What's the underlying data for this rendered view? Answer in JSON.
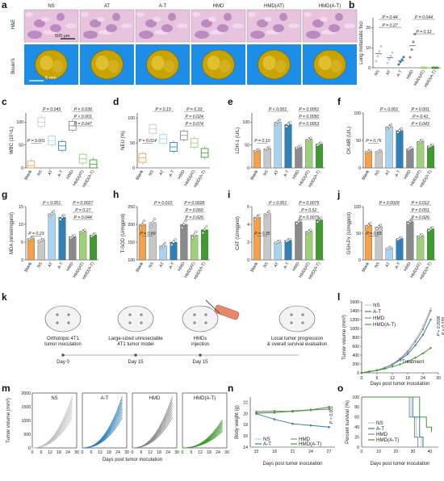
{
  "panel_labels": [
    "a",
    "b",
    "c",
    "d",
    "e",
    "f",
    "g",
    "h",
    "i",
    "j",
    "k",
    "l",
    "m",
    "n",
    "o"
  ],
  "panel_a": {
    "row_labels": [
      "H&E",
      "Bouin's"
    ],
    "groups": [
      "NS",
      "AT",
      "A-T",
      "HMD",
      "HMD(AT)",
      "HMD(A-T)"
    ],
    "scale_he": "500 μm",
    "scale_bouin": "5 mm"
  },
  "colors": {
    "Blank": "#f5a04a",
    "NS": "#c8c8c8",
    "AT": "#a8d4f0",
    "A-T": "#2f7fb8",
    "HMD": "#8a8a8a",
    "HMD(AT)": "#9ed07a",
    "HMD(A-T)": "#3f9b2f"
  },
  "panel_k": {
    "steps": [
      "Orthotopic 4T1\ntumor inoculation",
      "Large-sized unresectable\n4T1 tumor model",
      "HMDs\ninjection",
      "Local tumor progression\n& overall survival evaluation"
    ],
    "days": [
      "Day 0",
      "Day 15",
      "Day 15"
    ]
  },
  "chart_data": [
    {
      "panel": "b",
      "type": "scatter",
      "ylabel": "Lung metastatic foci",
      "categories": [
        "NS",
        "AT",
        "A-T",
        "HMD",
        "HMD(AT)",
        "HMD(A-T)"
      ],
      "means": [
        7,
        5,
        3.5,
        11,
        0,
        0
      ],
      "ylim": [
        0,
        25
      ],
      "yticks": [
        0,
        10,
        20
      ],
      "brackets": [
        {
          "from": "NS",
          "to": "A-T",
          "label": "P = 0.44"
        },
        {
          "from": "NS",
          "to": "A-T",
          "label": "P = 0.27"
        },
        {
          "from": "HMD",
          "to": "HMD(A-T)",
          "label": "P = 0.044"
        },
        {
          "from": "HMD",
          "to": "HMD(A-T)",
          "label": "P = 0.12"
        }
      ]
    },
    {
      "panel": "c",
      "type": "box",
      "ylabel": "WBC (10⁹/L)",
      "categories": [
        "Blank",
        "NS",
        "AT",
        "A-T",
        "HMD",
        "HMD(AT)",
        "HMD(A-T)"
      ],
      "medians": [
        5,
        100,
        60,
        48,
        92,
        20,
        8
      ],
      "ylim": [
        0,
        120
      ],
      "yticks": [
        0,
        50,
        100
      ],
      "brackets": [
        {
          "label": "P = 0.045"
        },
        {
          "label": "P = 0.039"
        },
        {
          "label": "P < 0.001"
        },
        {
          "label": "P = 0.047"
        },
        {
          "label": "P = 0.001"
        }
      ]
    },
    {
      "panel": "d",
      "type": "box",
      "ylabel": "NEU (%)",
      "categories": [
        "Blank",
        "NS",
        "AT",
        "A-T",
        "HMD",
        "HMD(AT)",
        "HMD(A-T)"
      ],
      "medians": [
        20,
        78,
        58,
        42,
        65,
        50,
        30
      ],
      "ylim": [
        0,
        110
      ],
      "yticks": [
        0,
        50,
        100
      ],
      "brackets": [
        {
          "label": "P = 0.15"
        },
        {
          "label": "P = 0.33"
        },
        {
          "label": "P = 0.024"
        },
        {
          "label": "P = 0.074"
        },
        {
          "label": "P = 0.014"
        }
      ]
    },
    {
      "panel": "e",
      "type": "bar",
      "ylabel": "LDH-1 (U/L)",
      "categories": [
        "Blank",
        "NS",
        "AT",
        "A-T",
        "HMD",
        "HMD(AT)",
        "HMD(A-T)"
      ],
      "values": [
        38,
        42,
        100,
        95,
        45,
        62,
        52
      ],
      "ylim": [
        0,
        120
      ],
      "yticks": [
        0,
        50,
        100
      ],
      "brackets": [
        {
          "label": "P < 0.001"
        },
        {
          "label": "P = 0.0051"
        },
        {
          "label": "P = 0.0050"
        },
        {
          "label": "P = 0.0053"
        },
        {
          "label": "P = 0.10"
        }
      ]
    },
    {
      "panel": "f",
      "type": "bar",
      "ylabel": "CK-MB (U/L)",
      "categories": [
        "Blank",
        "NS",
        "AT",
        "A-T",
        "HMD",
        "HMD(AT)",
        "HMD(A-T)"
      ],
      "values": [
        30,
        30,
        75,
        68,
        35,
        48,
        40
      ],
      "ylim": [
        0,
        100
      ],
      "yticks": [
        0,
        50,
        100
      ],
      "brackets": [
        {
          "label": "P < 0.001"
        },
        {
          "label": "P = 0.001"
        },
        {
          "label": "P = 0.41"
        },
        {
          "label": "P = 0.043"
        },
        {
          "label": "P = 0.76"
        }
      ]
    },
    {
      "panel": "g",
      "type": "bar",
      "ylabel": "MDA (nmol/mgprot)",
      "categories": [
        "Blank",
        "NS",
        "AT",
        "A-T",
        "HMD",
        "HMD(AT)",
        "HMD(A-T)"
      ],
      "values": [
        6,
        5.5,
        13,
        12,
        6.5,
        8,
        7
      ],
      "ylim": [
        0,
        15
      ],
      "yticks": [
        0,
        5,
        10,
        15
      ],
      "brackets": [
        {
          "label": "P < 0.001"
        },
        {
          "label": "P = 0.0027"
        },
        {
          "label": "P = 0.27"
        },
        {
          "label": "P = 0.044"
        },
        {
          "label": "P = 0.23"
        }
      ]
    },
    {
      "panel": "h",
      "type": "bar",
      "ylabel": "T-SOD (U/mgprot)",
      "categories": [
        "Blank",
        "NS",
        "AT",
        "A-T",
        "HMD",
        "HMD(AT)",
        "HMD(A-T)"
      ],
      "values": [
        200,
        205,
        140,
        150,
        200,
        170,
        185
      ],
      "ylim": [
        100,
        250
      ],
      "yticks": [
        100,
        150,
        200,
        250
      ],
      "brackets": [
        {
          "label": "P = 0.010"
        },
        {
          "label": "P = 0.0028"
        },
        {
          "label": "P = 0.060"
        },
        {
          "label": "P = 0.026"
        },
        {
          "label": "P = 0.89"
        }
      ]
    },
    {
      "panel": "i",
      "type": "bar",
      "ylabel": "CAT (U/mgprot)",
      "categories": [
        "Blank",
        "NS",
        "AT",
        "A-T",
        "HMD",
        "HMD(AT)",
        "HMD(A-T)"
      ],
      "values": [
        4.8,
        5.2,
        2.0,
        2.2,
        4.3,
        3.2,
        4.5
      ],
      "ylim": [
        0,
        6
      ],
      "yticks": [
        0,
        2,
        4,
        6
      ],
      "brackets": [
        {
          "label": "P < 0.001"
        },
        {
          "label": "P = 0.0075"
        },
        {
          "label": "P = 0.52"
        },
        {
          "label": "P = 0.0079"
        },
        {
          "label": "P = 0.35"
        }
      ]
    },
    {
      "panel": "j",
      "type": "bar",
      "ylabel": "GSH-Px (U/mgprot)",
      "categories": [
        "Blank",
        "NS",
        "AT",
        "A-T",
        "HMD",
        "HMD(AT)",
        "HMD(A-T)"
      ],
      "values": [
        65,
        62,
        22,
        40,
        72,
        45,
        58
      ],
      "ylim": [
        0,
        100
      ],
      "yticks": [
        0,
        50,
        100
      ],
      "brackets": [
        {
          "label": "P = 0.0029"
        },
        {
          "label": "P = 0.012"
        },
        {
          "label": "P = 0.051"
        },
        {
          "label": "P = 0.026"
        },
        {
          "label": "P = 0.83"
        }
      ]
    },
    {
      "panel": "l",
      "type": "line",
      "ylabel": "Tumor volume (mm³)",
      "xlabel": "Days post tumor inoculation",
      "x": [
        0,
        3,
        6,
        9,
        12,
        15,
        18,
        21,
        24,
        27
      ],
      "xticks": [
        0,
        6,
        12,
        18,
        24,
        30
      ],
      "ylim": [
        0,
        1600
      ],
      "yticks": [
        0,
        200,
        400,
        600,
        800,
        1000,
        1200,
        1400,
        1600
      ],
      "annotation": "Treatment",
      "pvals": [
        "P = 0.0036",
        "P = 0.039"
      ],
      "series": [
        {
          "name": "NS",
          "values": [
            0,
            30,
            60,
            120,
            200,
            330,
            500,
            750,
            1050,
            1450
          ]
        },
        {
          "name": "A-T",
          "values": [
            0,
            30,
            60,
            110,
            180,
            290,
            420,
            620,
            860,
            1200
          ]
        },
        {
          "name": "HMD",
          "values": [
            0,
            30,
            55,
            110,
            190,
            310,
            470,
            700,
            980,
            1400
          ]
        },
        {
          "name": "HMD(A-T)",
          "values": [
            0,
            30,
            55,
            90,
            140,
            190,
            260,
            340,
            440,
            560
          ]
        }
      ]
    },
    {
      "panel": "m",
      "type": "line",
      "ylabel": "Tumor volume (mm³)",
      "xlabel": "Days post tumor inoculation",
      "xticks": [
        0,
        6,
        12,
        18,
        24,
        30
      ],
      "ylim": [
        0,
        2000
      ],
      "yticks": [
        0,
        500,
        1000,
        1500,
        2000
      ],
      "subplots": [
        "NS",
        "A-T",
        "HMD",
        "HMD(A-T)"
      ]
    },
    {
      "panel": "n",
      "type": "line",
      "ylabel": "Body weight (g)",
      "xlabel": "Days post tumor inoculation",
      "x": [
        15,
        18,
        21,
        24,
        27
      ],
      "xticks": [
        15,
        18,
        21,
        24,
        27
      ],
      "ylim": [
        14,
        23
      ],
      "yticks": [
        14,
        16,
        18,
        20,
        22
      ],
      "pval": "P < 0.001",
      "series": [
        {
          "name": "NS",
          "values": [
            20.2,
            20.3,
            20.4,
            20.6,
            20.9
          ]
        },
        {
          "name": "A-T",
          "values": [
            20.0,
            19.0,
            18.2,
            17.9,
            17.6
          ]
        },
        {
          "name": "HMD",
          "values": [
            20.4,
            20.5,
            20.4,
            20.7,
            20.8
          ]
        },
        {
          "name": "HMD(A-T)",
          "values": [
            20.1,
            20.2,
            20.5,
            20.7,
            21.2
          ]
        }
      ]
    },
    {
      "panel": "o",
      "type": "line",
      "ylabel": "Percent survival (%)",
      "xlabel": "Days post tumor inoculation",
      "xticks": [
        0,
        10,
        20,
        30,
        40
      ],
      "ylim": [
        0,
        100
      ],
      "yticks": [
        0,
        20,
        40,
        60,
        80,
        100
      ],
      "series": [
        {
          "name": "NS",
          "values": [
            [
              0,
              100
            ],
            [
              29,
              100
            ],
            [
              29,
              60
            ],
            [
              32,
              60
            ],
            [
              32,
              20
            ],
            [
              35,
              20
            ],
            [
              35,
              0
            ]
          ]
        },
        {
          "name": "A-T",
          "values": [
            [
              0,
              100
            ],
            [
              30,
              100
            ],
            [
              30,
              60
            ],
            [
              34,
              60
            ],
            [
              34,
              20
            ],
            [
              36,
              20
            ],
            [
              36,
              0
            ]
          ]
        },
        {
          "name": "HMD",
          "values": [
            [
              0,
              100
            ],
            [
              28,
              100
            ],
            [
              28,
              60
            ],
            [
              31,
              60
            ],
            [
              31,
              20
            ],
            [
              33,
              20
            ],
            [
              33,
              0
            ]
          ]
        },
        {
          "name": "HMD(A-T)",
          "values": [
            [
              0,
              100
            ],
            [
              34,
              100
            ],
            [
              34,
              60
            ],
            [
              38,
              60
            ],
            [
              38,
              40
            ],
            [
              41,
              40
            ],
            [
              41,
              30
            ]
          ]
        }
      ]
    }
  ]
}
